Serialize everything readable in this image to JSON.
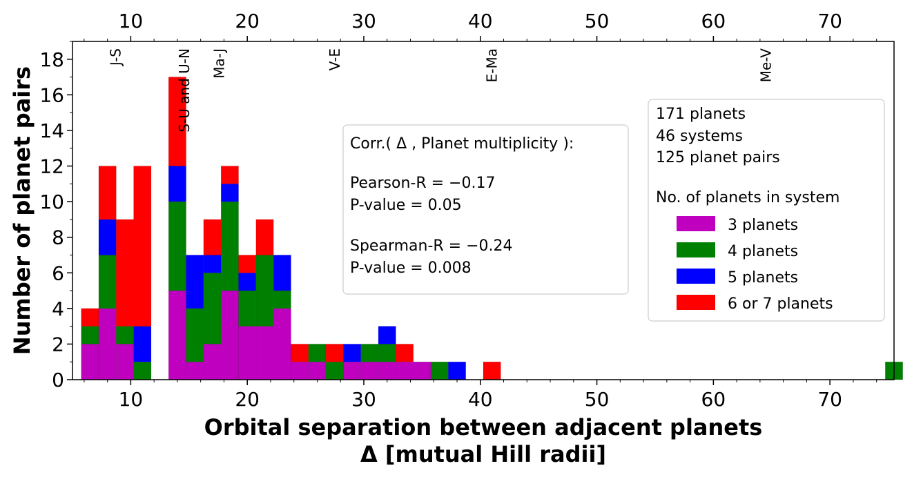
{
  "chart_data": {
    "type": "bar",
    "stacked": true,
    "title": "",
    "xlabel_line1": "Orbital separation between adjacent planets",
    "xlabel_line2": "Δ [mutual Hill radii]",
    "ylabel": "Number of planet pairs",
    "xlim": [
      5,
      75.5
    ],
    "ylim": [
      0,
      19
    ],
    "bin_width": 1.5,
    "bin_start": 5.75,
    "x_ticks": [
      10,
      20,
      30,
      40,
      50,
      60,
      70
    ],
    "x_tick_labels": [
      "10",
      "20",
      "30",
      "40",
      "50",
      "60",
      "70"
    ],
    "y_ticks": [
      0,
      2,
      4,
      6,
      8,
      10,
      12,
      14,
      16,
      18
    ],
    "y_tick_labels": [
      "0",
      "2",
      "4",
      "6",
      "8",
      "10",
      "12",
      "14",
      "16",
      "18"
    ],
    "series": [
      {
        "name": "3 planets",
        "color": "#bf00bf",
        "values": [
          2,
          4,
          2,
          0,
          0,
          5,
          1,
          2,
          5,
          3,
          3,
          4,
          1,
          1,
          0,
          1,
          1,
          1,
          1,
          1,
          0,
          0,
          0,
          0,
          0,
          0,
          0,
          0,
          0,
          0,
          0,
          0,
          0,
          0,
          0,
          0,
          0,
          0,
          0,
          0,
          0,
          0,
          0,
          0,
          0,
          0,
          0
        ]
      },
      {
        "name": "4 planets",
        "color": "#008000",
        "values": [
          1,
          3,
          1,
          1,
          0,
          5,
          3,
          4,
          5,
          2,
          4,
          1,
          0,
          1,
          1,
          0,
          1,
          1,
          0,
          0,
          1,
          0,
          0,
          0,
          0,
          0,
          0,
          0,
          0,
          0,
          0,
          0,
          0,
          0,
          0,
          0,
          0,
          0,
          0,
          0,
          0,
          0,
          0,
          0,
          0,
          0,
          1
        ]
      },
      {
        "name": "5 planets",
        "color": "#0000ff",
        "values": [
          0,
          2,
          0,
          2,
          0,
          2,
          3,
          1,
          1,
          1,
          0,
          2,
          0,
          0,
          0,
          1,
          0,
          1,
          0,
          0,
          0,
          1,
          0,
          0,
          0,
          0,
          0,
          0,
          0,
          0,
          0,
          0,
          0,
          0,
          0,
          0,
          0,
          0,
          0,
          0,
          0,
          0,
          0,
          0,
          0,
          0,
          0
        ]
      },
      {
        "name": "6 or 7 planets",
        "color": "#ff0000",
        "values": [
          1,
          3,
          6,
          9,
          0,
          5,
          0,
          2,
          1,
          1,
          2,
          0,
          1,
          0,
          1,
          0,
          0,
          0,
          1,
          0,
          0,
          0,
          0,
          1,
          0,
          0,
          0,
          0,
          0,
          0,
          0,
          0,
          0,
          0,
          0,
          0,
          0,
          0,
          0,
          0,
          0,
          0,
          0,
          0,
          0,
          0,
          0
        ]
      }
    ],
    "top_axis_planet_pairs": [
      {
        "label": "J-S",
        "x": 8.7
      },
      {
        "label": "S-U and U-N",
        "x": 14.6
      },
      {
        "label": "Ma-J",
        "x": 17.6
      },
      {
        "label": "V-E",
        "x": 27.5
      },
      {
        "label": "E-Ma",
        "x": 41.0
      },
      {
        "label": "Me-V",
        "x": 64.5
      }
    ],
    "stats_box": {
      "line1": "Corr.( Δ , Planet multiplicity ):",
      "line2": "Pearson-R = −0.17",
      "line3": "P-value = 0.05",
      "line4": "Spearman-R = −0.24",
      "line5": "P-value = 0.008"
    },
    "legend": {
      "position": "right",
      "info1": "171 planets",
      "info2": "46 systems",
      "info3": "125 planet pairs",
      "title": "No. of planets in system",
      "entries": [
        "3 planets",
        "4 planets",
        "5 planets",
        "6 or 7 planets"
      ]
    }
  }
}
